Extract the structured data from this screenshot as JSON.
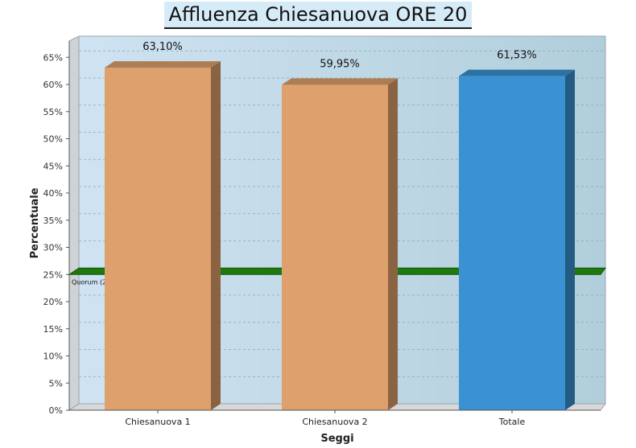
{
  "chart_data": {
    "type": "bar",
    "title": "Affluenza Chiesanuova ORE 20",
    "xlabel": "Seggi",
    "ylabel": "Percentuale",
    "categories": [
      "Chiesanuova 1",
      "Chiesanuova 2",
      "Totale"
    ],
    "values": [
      63.1,
      59.95,
      61.53
    ],
    "value_labels": [
      "63,10%",
      "59,95%",
      "61,53%"
    ],
    "bar_colors": [
      "#dea06c",
      "#dea06c",
      "#3a92d2"
    ],
    "ylim": [
      0,
      68
    ],
    "y_ticks": [
      0,
      5,
      10,
      15,
      20,
      25,
      30,
      35,
      40,
      45,
      50,
      55,
      60,
      65
    ],
    "y_tick_labels": [
      "0%",
      "5%",
      "10%",
      "15%",
      "20%",
      "25%",
      "30%",
      "35%",
      "40%",
      "45%",
      "50%",
      "55%",
      "60%",
      "65%"
    ],
    "grid": true,
    "three_d": true,
    "reference_line": {
      "value": 25,
      "label": "Quorum (25%)",
      "color": "#1e7a0e"
    }
  }
}
